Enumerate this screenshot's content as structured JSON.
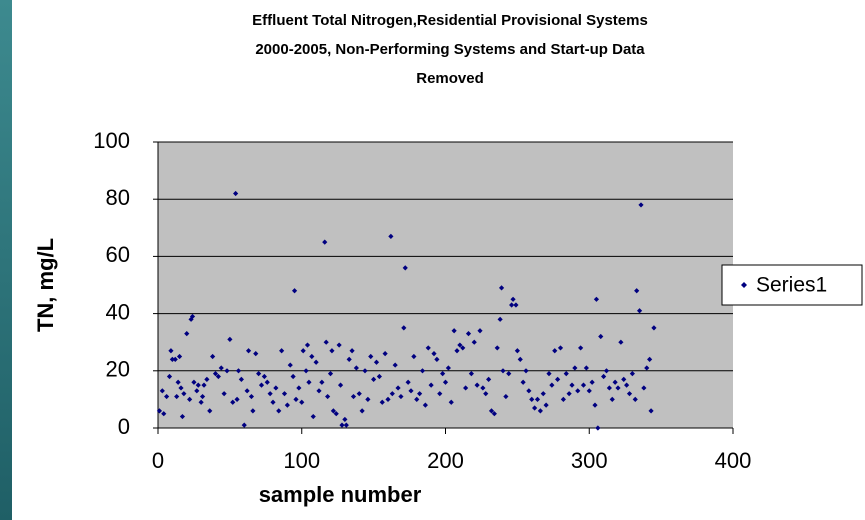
{
  "chart_data": {
    "type": "scatter",
    "title": [
      "Effluent Total Nitrogen,Residential Provisional Systems",
      "2000-2005, Non-Performing Systems and Start-up Data",
      "Removed"
    ],
    "xlabel": "sample number",
    "ylabel": "TN, mg/L",
    "xlim": [
      0,
      400
    ],
    "xticks": [
      0,
      100,
      200,
      300,
      400
    ],
    "ylim": [
      0,
      100
    ],
    "yticks": [
      0,
      20,
      40,
      60,
      80,
      100
    ],
    "grid": true,
    "legend": "right",
    "x": [
      1,
      3,
      4,
      6,
      8,
      9,
      10,
      12,
      13,
      14,
      15,
      16,
      17,
      18,
      20,
      22,
      23,
      24,
      25,
      27,
      28,
      30,
      31,
      32,
      34,
      36,
      38,
      40,
      42,
      44,
      46,
      48,
      50,
      52,
      54,
      55,
      56,
      58,
      60,
      62,
      63,
      65,
      66,
      68,
      70,
      72,
      74,
      76,
      78,
      80,
      82,
      84,
      86,
      88,
      90,
      92,
      94,
      95,
      96,
      98,
      100,
      101,
      103,
      104,
      105,
      107,
      108,
      110,
      112,
      114,
      116,
      117,
      118,
      120,
      121,
      122,
      124,
      126,
      127,
      128,
      130,
      131,
      133,
      135,
      136,
      138,
      140,
      142,
      144,
      146,
      148,
      150,
      152,
      154,
      156,
      158,
      160,
      162,
      163,
      165,
      167,
      169,
      171,
      172,
      174,
      176,
      178,
      180,
      182,
      184,
      186,
      188,
      190,
      192,
      194,
      196,
      198,
      200,
      202,
      204,
      206,
      208,
      210,
      212,
      214,
      216,
      218,
      220,
      222,
      224,
      226,
      228,
      230,
      232,
      234,
      236,
      238,
      239,
      240,
      242,
      244,
      246,
      247,
      249,
      250,
      252,
      254,
      256,
      258,
      260,
      262,
      264,
      266,
      268,
      270,
      272,
      274,
      276,
      278,
      280,
      282,
      284,
      286,
      288,
      290,
      292,
      294,
      296,
      298,
      300,
      302,
      304,
      305,
      306,
      308,
      310,
      312,
      314,
      316,
      318,
      320,
      322,
      324,
      326,
      328,
      330,
      332,
      333,
      335,
      336,
      338,
      340,
      342,
      343,
      345
    ],
    "series": [
      {
        "name": "Series1",
        "color": "#000080",
        "values": [
          6,
          13,
          5,
          11,
          18,
          27,
          24,
          24,
          11,
          16,
          25,
          14,
          4,
          12,
          33,
          10,
          38,
          39,
          16,
          13,
          15,
          9,
          11,
          15,
          17,
          6,
          25,
          19,
          18,
          21,
          12,
          20,
          31,
          9,
          82,
          10,
          20,
          17,
          1,
          13,
          27,
          11,
          6,
          26,
          19,
          15,
          18,
          16,
          12,
          9,
          14,
          6,
          27,
          12,
          8,
          22,
          18,
          48,
          10,
          14,
          9,
          27,
          20,
          29,
          16,
          25,
          4,
          23,
          13,
          16,
          65,
          30,
          11,
          19,
          27,
          6,
          5,
          29,
          15,
          1,
          3,
          1,
          24,
          27,
          11,
          21,
          12,
          6,
          20,
          10,
          25,
          17,
          23,
          18,
          9,
          26,
          10,
          67,
          12,
          22,
          14,
          11,
          35,
          56,
          16,
          13,
          25,
          10,
          12,
          20,
          8,
          28,
          15,
          26,
          24,
          12,
          19,
          16,
          21,
          9,
          34,
          27,
          29,
          28,
          14,
          33,
          19,
          30,
          15,
          34,
          14,
          12,
          17,
          6,
          5,
          28,
          38,
          49,
          20,
          11,
          19,
          43,
          45,
          43,
          27,
          24,
          16,
          20,
          13,
          10,
          7,
          10,
          6,
          12,
          8,
          19,
          15,
          27,
          17,
          28,
          10,
          19,
          12,
          15,
          21,
          13,
          28,
          15,
          21,
          13,
          16,
          8,
          45,
          0,
          32,
          18,
          20,
          14,
          10,
          16,
          14,
          30,
          17,
          15,
          12,
          19,
          10,
          48,
          41,
          78,
          14,
          21,
          24,
          6,
          35
        ]
      }
    ]
  }
}
